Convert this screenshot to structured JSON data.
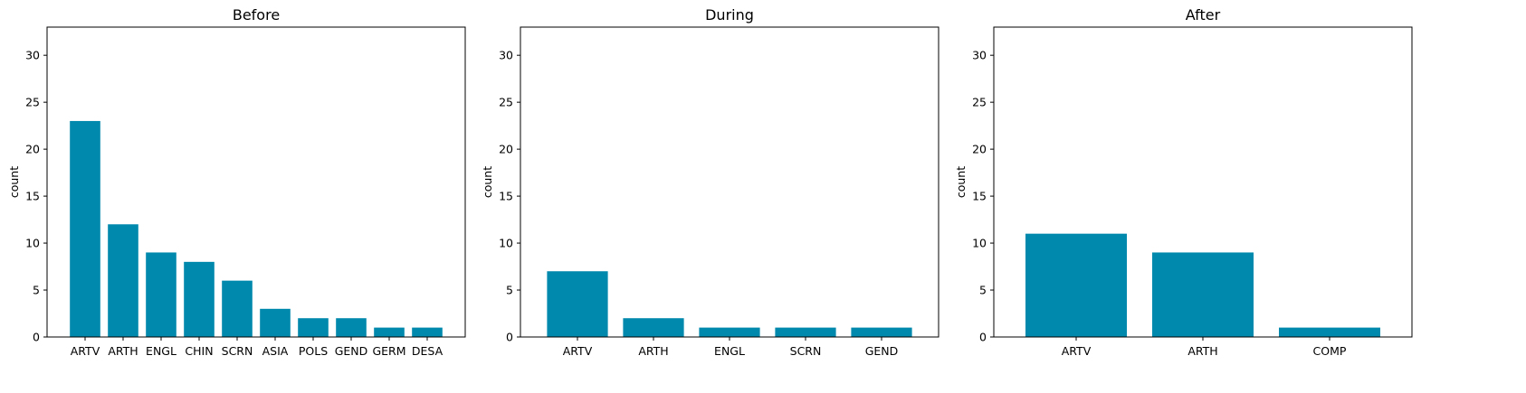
{
  "bar_color": "#0088ad",
  "chart_data": [
    {
      "type": "bar",
      "title": "Before",
      "xlabel": "",
      "ylabel": "count",
      "ylim": [
        0,
        33
      ],
      "yticks": [
        0,
        5,
        10,
        15,
        20,
        25,
        30
      ],
      "categories": [
        "ARTV",
        "ARTH",
        "ENGL",
        "CHIN",
        "SCRN",
        "ASIA",
        "POLS",
        "GEND",
        "GERM",
        "DESA"
      ],
      "values": [
        23,
        12,
        9,
        8,
        6,
        3,
        2,
        2,
        1,
        1
      ],
      "grid": false
    },
    {
      "type": "bar",
      "title": "During",
      "xlabel": "",
      "ylabel": "count",
      "ylim": [
        0,
        33
      ],
      "yticks": [
        0,
        5,
        10,
        15,
        20,
        25,
        30
      ],
      "categories": [
        "ARTV",
        "ARTH",
        "ENGL",
        "SCRN",
        "GEND"
      ],
      "values": [
        7,
        2,
        1,
        1,
        1
      ],
      "grid": false
    },
    {
      "type": "bar",
      "title": "After",
      "xlabel": "",
      "ylabel": "count",
      "ylim": [
        0,
        33
      ],
      "yticks": [
        0,
        5,
        10,
        15,
        20,
        25,
        30
      ],
      "categories": [
        "ARTV",
        "ARTH",
        "COMP"
      ],
      "values": [
        11,
        9,
        1
      ],
      "grid": false
    }
  ]
}
